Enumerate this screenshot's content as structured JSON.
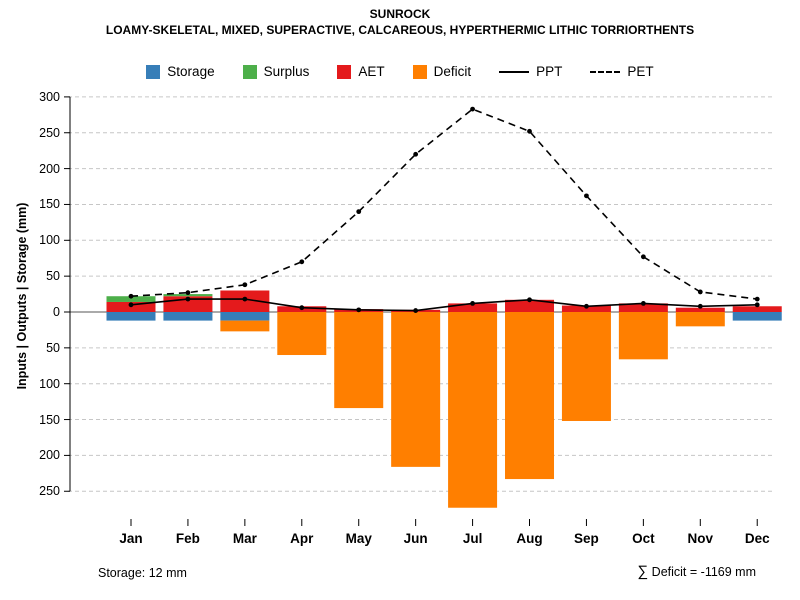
{
  "title": "SUNROCK",
  "subtitle": "LOAMY-SKELETAL, MIXED, SUPERACTIVE, CALCAREOUS, HYPERTHERMIC LITHIC TORRIORTHENTS",
  "footer": {
    "storage_note": "Storage: 12 mm",
    "deficit_sum_symbol": "∑",
    "deficit_note": " Deficit = -1169 mm"
  },
  "legend": {
    "items": [
      {
        "label": "Storage",
        "swatch": "square",
        "color": "#377eb8"
      },
      {
        "label": "Surplus",
        "swatch": "square",
        "color": "#4daf4a"
      },
      {
        "label": "AET",
        "swatch": "square",
        "color": "#e41a1c"
      },
      {
        "label": "Deficit",
        "swatch": "square",
        "color": "#ff7f00"
      },
      {
        "label": "PPT",
        "swatch": "line-solid",
        "color": "#000000"
      },
      {
        "label": "PET",
        "swatch": "line-dashed",
        "color": "#000000"
      }
    ]
  },
  "chart_data": {
    "type": "bar",
    "title": "SUNROCK",
    "subtitle": "LOAMY-SKELETAL, MIXED, SUPERACTIVE, CALCAREOUS, HYPERTHERMIC LITHIC TORRIORTHENTS",
    "ylabel": "Inputs | Outputs | Storage  (mm)",
    "xlabel": "",
    "categories": [
      "Jan",
      "Feb",
      "Mar",
      "Apr",
      "May",
      "Jun",
      "Jul",
      "Aug",
      "Sep",
      "Oct",
      "Nov",
      "Dec"
    ],
    "series": [
      {
        "name": "Storage",
        "kind": "bar-below-zero",
        "color": "#377eb8",
        "values": [
          12,
          12,
          12,
          0,
          0,
          0,
          0,
          0,
          0,
          0,
          0,
          12
        ]
      },
      {
        "name": "Surplus",
        "kind": "bar-stacked-above",
        "color": "#4daf4a",
        "values": [
          8,
          3,
          0,
          0,
          0,
          0,
          0,
          0,
          0,
          0,
          0,
          0
        ]
      },
      {
        "name": "AET",
        "kind": "bar-above-zero",
        "color": "#e41a1c",
        "values": [
          14,
          22,
          30,
          8,
          4,
          3,
          12,
          17,
          9,
          12,
          6,
          8
        ]
      },
      {
        "name": "Deficit",
        "kind": "bar-below-zero-stacked",
        "color": "#ff7f00",
        "values": [
          0,
          0,
          15,
          60,
          134,
          216,
          273,
          233,
          152,
          66,
          20,
          0
        ]
      },
      {
        "name": "PPT",
        "kind": "line-solid",
        "color": "#000000",
        "values": [
          10,
          18,
          18,
          6,
          3,
          2,
          12,
          17,
          8,
          12,
          8,
          10
        ]
      },
      {
        "name": "PET",
        "kind": "line-dashed",
        "color": "#000000",
        "values": [
          22,
          27,
          38,
          70,
          140,
          220,
          283,
          252,
          162,
          77,
          28,
          18
        ]
      }
    ],
    "ylim": [
      -280,
      300
    ],
    "yticks": [
      300,
      250,
      200,
      150,
      100,
      50,
      0,
      -50,
      -100,
      -150,
      -200,
      -250
    ],
    "ytick_labels": [
      "300",
      "250",
      "200",
      "150",
      "100",
      "50",
      "0",
      "50",
      "100",
      "150",
      "200",
      "250"
    ],
    "grid": true,
    "legend_position": "top",
    "annotations": [
      "Storage: 12 mm",
      "∑ Deficit = -1169 mm"
    ]
  }
}
